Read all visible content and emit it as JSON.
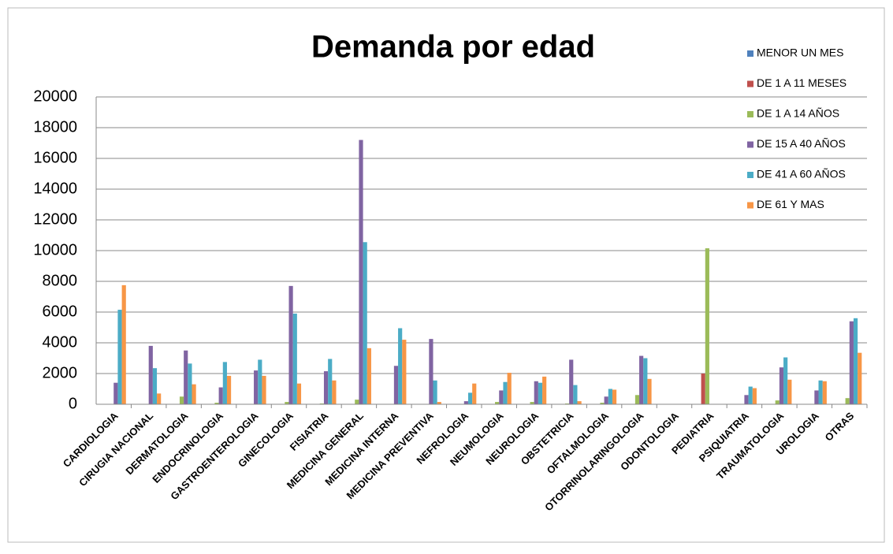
{
  "chart_data": {
    "type": "bar",
    "title": "Demanda por edad",
    "categories": [
      "CARDIOLOGIA",
      "CIRUGIA NACIONAL",
      "DERMATOLOGIA",
      "ENDOCRINOLOGIA",
      "GASTROENTEROLOGIA",
      "GINECOLOGIA",
      "FISIATRIA",
      "MEDICINA GENERAL",
      "MEDICINA INTERNA",
      "MEDICINA PREVENTIVA",
      "NEFROLOGIA",
      "NEUMOLOGIA",
      "NEUROLOGIA",
      "OBSTETRICIA",
      "OFTALMOLOGIA",
      "OTORRINOLARINGOLOGIA",
      "ODONTOLOGIA",
      "PEDIATRIA",
      "PSIQUIATRIA",
      "TRAUMATOLOGIA",
      "UROLOGIA",
      "OTRAS"
    ],
    "series": [
      {
        "name": "MENOR UN MES",
        "color": "#4f81bd",
        "values": [
          0,
          0,
          0,
          0,
          0,
          0,
          0,
          0,
          0,
          0,
          0,
          0,
          0,
          0,
          0,
          0,
          0,
          0,
          0,
          0,
          0,
          0
        ]
      },
      {
        "name": "DE 1 A 11 MESES",
        "color": "#c0504d",
        "values": [
          0,
          0,
          0,
          0,
          0,
          0,
          0,
          0,
          0,
          0,
          0,
          0,
          0,
          0,
          0,
          0,
          0,
          2000,
          0,
          0,
          0,
          0
        ]
      },
      {
        "name": "DE 1 A 14 AÑOS",
        "color": "#9bbb59",
        "values": [
          0,
          0,
          500,
          100,
          0,
          150,
          50,
          300,
          0,
          0,
          0,
          150,
          150,
          50,
          100,
          600,
          0,
          10150,
          0,
          250,
          0,
          400
        ]
      },
      {
        "name": "DE 15 A 40 AÑOS",
        "color": "#8064a2",
        "values": [
          1400,
          3800,
          3500,
          1100,
          2200,
          7700,
          2150,
          17200,
          2500,
          4250,
          200,
          900,
          1500,
          2900,
          500,
          3150,
          0,
          0,
          600,
          2400,
          900,
          5400
        ]
      },
      {
        "name": "DE 41 A 60 AÑOS",
        "color": "#4bacc6",
        "values": [
          6150,
          2350,
          2650,
          2750,
          2900,
          5900,
          2950,
          10550,
          4950,
          1550,
          750,
          1450,
          1400,
          1250,
          1000,
          3000,
          0,
          0,
          1150,
          3050,
          1550,
          5600
        ]
      },
      {
        "name": "DE 61 Y MAS",
        "color": "#f79646",
        "values": [
          7750,
          700,
          1300,
          1850,
          1850,
          1350,
          1550,
          3650,
          4200,
          150,
          1350,
          2050,
          1800,
          200,
          950,
          1650,
          0,
          0,
          1050,
          1600,
          1500,
          3350
        ]
      }
    ],
    "ylim": [
      0,
      20000
    ],
    "yticks": [
      0,
      2000,
      4000,
      6000,
      8000,
      10000,
      12000,
      14000,
      16000,
      18000,
      20000
    ],
    "grid": true,
    "legend": "right"
  }
}
